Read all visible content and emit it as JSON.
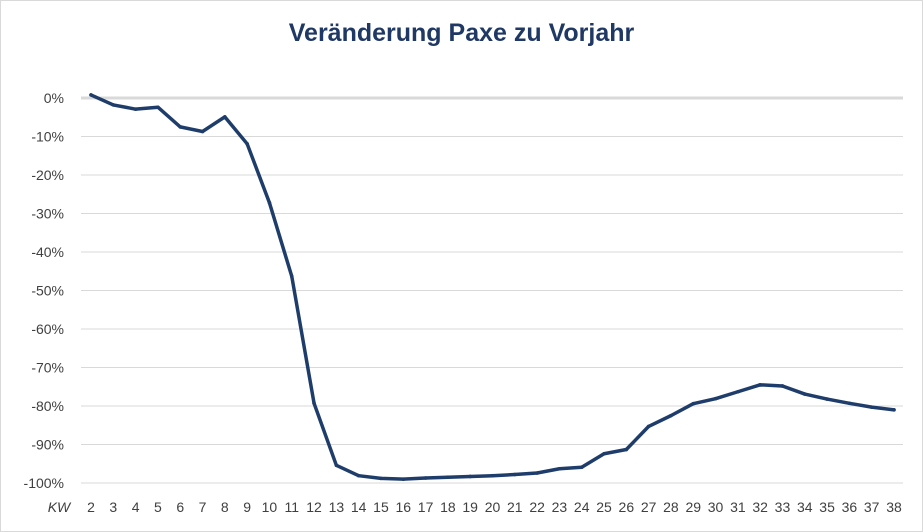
{
  "chart_data": {
    "type": "line",
    "title": "Veränderung Paxe zu Vorjahr",
    "x_unit_label": "KW",
    "categories": [
      "2",
      "3",
      "4",
      "5",
      "6",
      "7",
      "8",
      "9",
      "10",
      "11",
      "12",
      "13",
      "14",
      "15",
      "16",
      "17",
      "18",
      "19",
      "20",
      "21",
      "22",
      "23",
      "24",
      "25",
      "26",
      "27",
      "28",
      "29",
      "30",
      "31",
      "32",
      "33",
      "34",
      "35",
      "36",
      "37",
      "38"
    ],
    "y_ticks": [
      "0%",
      "-10%",
      "-20%",
      "-30%",
      "-40%",
      "-50%",
      "-60%",
      "-70%",
      "-80%",
      "-90%",
      "-100%"
    ],
    "ylim": [
      -100,
      0
    ],
    "grid": true,
    "colors": {
      "line": "#1f3d6b",
      "grid": "#d9d9d9",
      "zero_line": "#d9d9d9"
    },
    "series": [
      {
        "values": [
          0.8,
          -1.8,
          -2.9,
          -2.4,
          -7.5,
          -8.7,
          -4.9,
          -11.9,
          -27.2,
          -46.3,
          -79.3,
          -95.4,
          -98.1,
          -98.8,
          -99.0,
          -98.7,
          -98.5,
          -98.3,
          -98.1,
          -97.8,
          -97.4,
          -96.3,
          -95.9,
          -92.4,
          -91.3,
          -85.3,
          -82.5,
          -79.4,
          -78.1,
          -76.3,
          -74.5,
          -74.8,
          -76.9,
          -78.2,
          -79.3,
          -80.3,
          -81.0
        ]
      }
    ]
  }
}
